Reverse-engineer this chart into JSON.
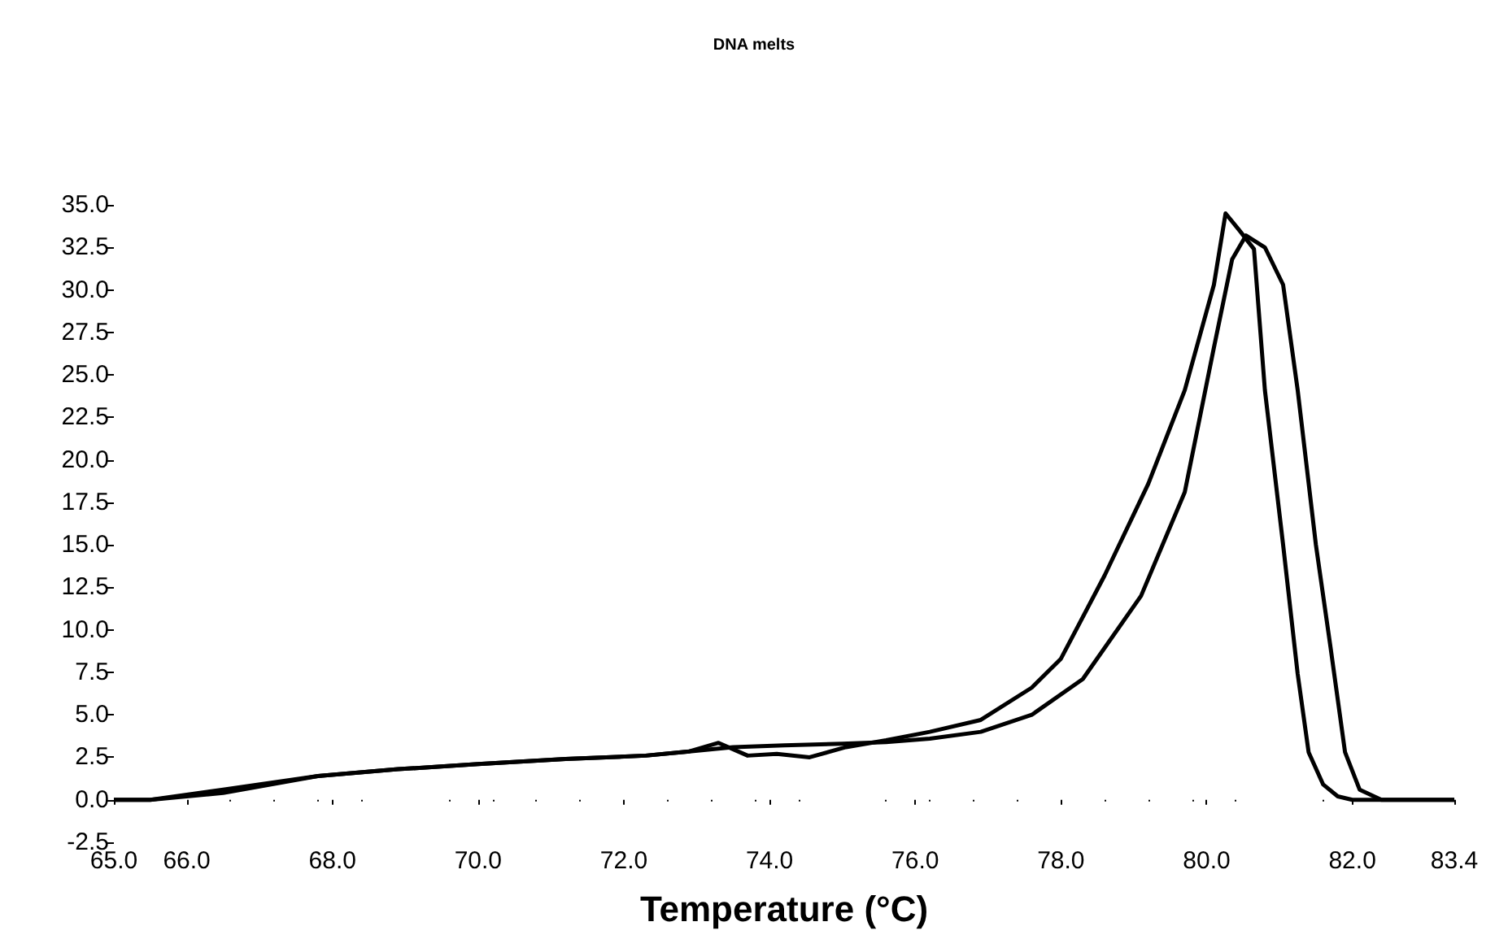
{
  "chart_data": {
    "type": "line",
    "title": "DNA melts",
    "xlabel": "Temperature (°C)",
    "xlim": [
      65,
      83.4
    ],
    "xticks": [
      {
        "value": 65,
        "label": "65.0"
      },
      {
        "value": 66,
        "label": "66.0"
      },
      {
        "value": 68,
        "label": "68.0"
      },
      {
        "value": 70,
        "label": "70.0"
      },
      {
        "value": 72,
        "label": "72.0"
      },
      {
        "value": 74,
        "label": "74.0"
      },
      {
        "value": 76,
        "label": "76.0"
      },
      {
        "value": 78,
        "label": "78.0"
      },
      {
        "value": 80,
        "label": "80.0"
      },
      {
        "value": 82,
        "label": "82.0"
      },
      {
        "value": 83.4,
        "label": "83.4"
      }
    ],
    "ylim": [
      -2.5,
      35
    ],
    "yticks": [
      {
        "value": -2.5,
        "label": "-2.5"
      },
      {
        "value": 0,
        "label": "0.0"
      },
      {
        "value": 2.5,
        "label": "2.5"
      },
      {
        "value": 5,
        "label": "5.0"
      },
      {
        "value": 7.5,
        "label": "7.5"
      },
      {
        "value": 10,
        "label": "10.0"
      },
      {
        "value": 12.5,
        "label": "12.5"
      },
      {
        "value": 15,
        "label": "15.0"
      },
      {
        "value": 17.5,
        "label": "17.5"
      },
      {
        "value": 20,
        "label": "20.0"
      },
      {
        "value": 22.5,
        "label": "22.5"
      },
      {
        "value": 25,
        "label": "25.0"
      },
      {
        "value": 27.5,
        "label": "27.5"
      },
      {
        "value": 30,
        "label": "30.0"
      },
      {
        "value": 32.5,
        "label": "32.5"
      },
      {
        "value": 35,
        "label": "35.0"
      }
    ],
    "series": [
      {
        "color": "#000000",
        "x": [
          65,
          65.5,
          66.5,
          67.8,
          68.9,
          70,
          71.2,
          72.3,
          72.9,
          73.3,
          73.7,
          74.1,
          74.55,
          75.05,
          75.6,
          76.2,
          76.9,
          77.6,
          78,
          78.6,
          79.2,
          79.7,
          80.1,
          80.26,
          80.45,
          80.65,
          80.8,
          81.05,
          81.25,
          81.4,
          81.6,
          81.8,
          82,
          82.5,
          83.4
        ],
        "values": [
          0,
          0,
          0.6,
          1.4,
          1.8,
          2.1,
          2.4,
          2.6,
          2.85,
          3.35,
          2.6,
          2.7,
          2.5,
          3.1,
          3.5,
          4,
          4.7,
          6.6,
          8.3,
          13.2,
          18.6,
          24.1,
          30.3,
          34.5,
          33.5,
          32.4,
          24.1,
          15,
          7.4,
          2.8,
          0.9,
          0.2,
          0,
          0,
          0
        ]
      },
      {
        "color": "#000000",
        "x": [
          65,
          65.5,
          66.5,
          67.8,
          68.9,
          70,
          71.2,
          72.3,
          72.9,
          73.5,
          74.2,
          75,
          75.6,
          76.2,
          76.9,
          77.6,
          78.3,
          79.1,
          79.7,
          80.1,
          80.35,
          80.54,
          80.8,
          81.05,
          81.25,
          81.5,
          81.7,
          81.9,
          82.1,
          82.4,
          83,
          83.4
        ],
        "values": [
          0,
          0,
          0.4,
          1.4,
          1.8,
          2.1,
          2.4,
          2.6,
          2.85,
          3.1,
          3.2,
          3.3,
          3.4,
          3.6,
          4,
          5,
          7.1,
          12,
          18.1,
          26.6,
          31.8,
          33.2,
          32.5,
          30.3,
          24.1,
          15,
          9,
          2.8,
          0.6,
          0,
          0,
          0
        ]
      }
    ]
  }
}
